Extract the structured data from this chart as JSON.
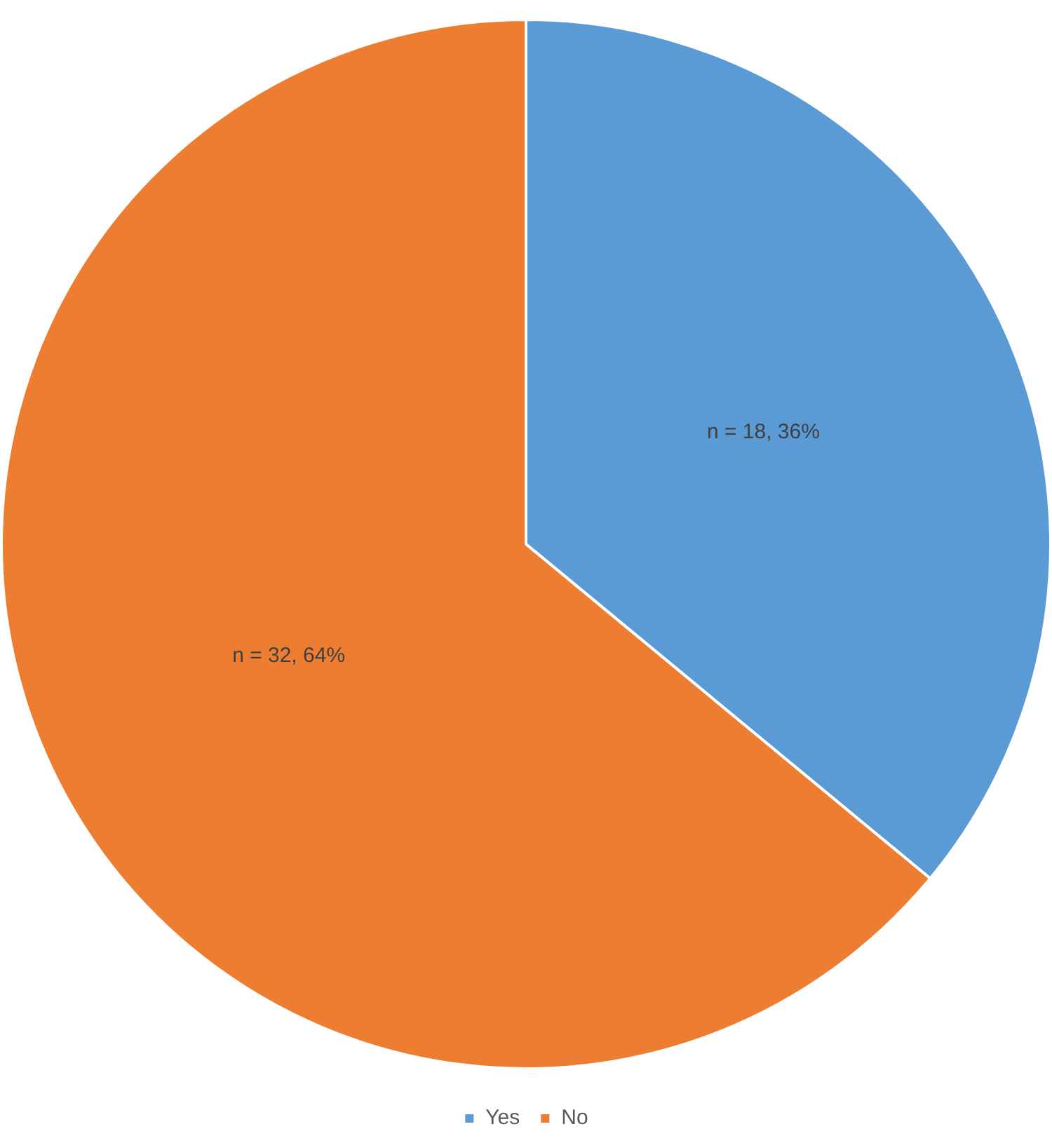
{
  "chart_data": {
    "type": "pie",
    "categories": [
      "Yes",
      "No"
    ],
    "values": [
      18,
      32
    ],
    "colors": [
      "#5b9bd5",
      "#ed7d31"
    ],
    "value_labels": [
      "n = 18, 36%",
      "n = 32, 64%"
    ],
    "legend": "bottom"
  }
}
